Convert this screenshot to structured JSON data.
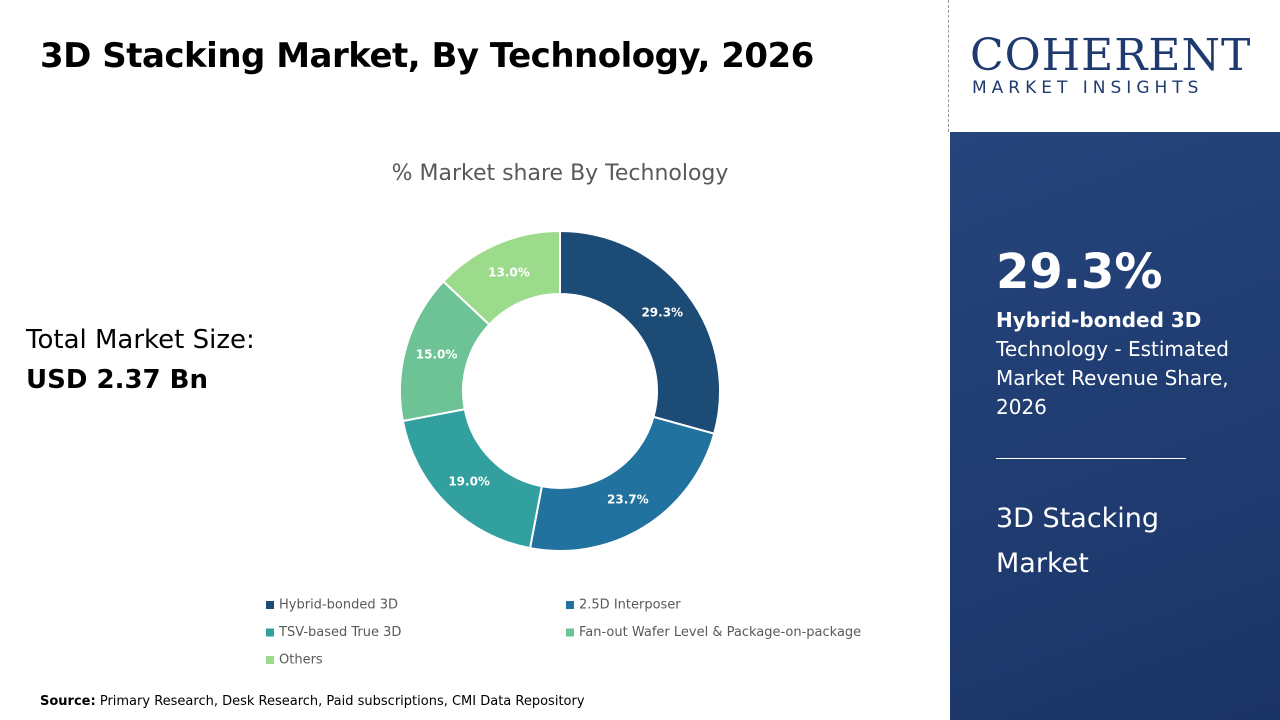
{
  "title": "3D Stacking Market, By Technology, 2026",
  "market_size": {
    "label": "Total Market Size:",
    "value": "USD 2.37 Bn"
  },
  "logo": {
    "name": "COHERENT",
    "tagline": "MARKET INSIGHTS"
  },
  "highlight": {
    "value": "29.3%",
    "segment": "Hybrid-bonded 3D",
    "description": "Technology - Estimated Market Revenue Share, 2026",
    "market": "3D Stacking Market"
  },
  "source": {
    "label": "Source:",
    "text": "Primary Research, Desk Research, Paid subscriptions, CMI Data Repository"
  },
  "chart_data": {
    "type": "donut",
    "title": "% Market share By Technology",
    "categories": [
      "Hybrid-bonded 3D",
      "2.5D Interposer",
      "TSV-based True 3D",
      "Fan-out Wafer Level & Package-on-package",
      "Others"
    ],
    "values": [
      29.3,
      23.7,
      19.0,
      15.0,
      13.0
    ],
    "value_labels": [
      "29.3%",
      "23.7%",
      "19.0%",
      "15.0%",
      "13.0%"
    ],
    "colors": [
      "#1c4b75",
      "#22729f",
      "#31a09f",
      "#6ec396",
      "#9bdb8b"
    ]
  }
}
